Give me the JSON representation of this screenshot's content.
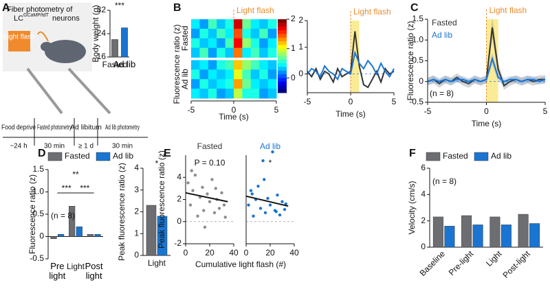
{
  "schematic": {
    "title": "Fiber photometry of",
    "lc": "LC",
    "superscript": "GCaMP/tdT",
    "neurons": "neurons",
    "light": "Light flash",
    "timeline": {
      "steps": [
        "Food deprive",
        "Fasted photometry",
        "Ad libitum",
        "Ad lib photometry"
      ],
      "durations": [
        "~24 h",
        "30 min",
        "≥ 1 d",
        "30 min"
      ]
    },
    "panels": [
      "A",
      "B",
      "C",
      "D",
      "E",
      "F"
    ]
  },
  "chart_data": [
    {
      "type": "bar",
      "categories": [
        "Fasted",
        "Ad lib"
      ],
      "values": [
        22,
        26
      ],
      "colors": [
        "#6d6e71",
        "#1a75d2"
      ],
      "ylim": [
        16,
        32
      ],
      "yticks": [
        16,
        24,
        32
      ],
      "ylabel": "Body weight (g)",
      "annotation": "***"
    },
    {
      "type": "heatmap",
      "groups": [
        {
          "name": "Fasted",
          "rows": [
            [
              0.4,
              0.2,
              0.6,
              0.3,
              0.5,
              1.8,
              0.7,
              0.4,
              0.3,
              0.5
            ],
            [
              0.2,
              0.5,
              0.3,
              0.6,
              0.4,
              1.5,
              0.5,
              0.3,
              0.6,
              0.2
            ],
            [
              0.5,
              0.3,
              0.4,
              0.2,
              0.6,
              1.7,
              0.8,
              0.5,
              0.2,
              0.4
            ],
            [
              0.3,
              0.6,
              0.2,
              0.5,
              0.3,
              1.4,
              0.4,
              0.6,
              0.3,
              0.5
            ]
          ]
        },
        {
          "name": "Ad lib",
          "rows": [
            [
              0.3,
              0.4,
              0.2,
              0.5,
              0.6,
              1.2,
              0.8,
              0.6,
              0.4,
              0.3
            ],
            [
              0.5,
              0.2,
              0.4,
              0.3,
              0.4,
              1.0,
              0.6,
              0.3,
              0.5,
              0.2
            ],
            [
              0.2,
              0.5,
              0.3,
              0.4,
              0.5,
              1.3,
              0.7,
              0.4,
              0.3,
              0.4
            ],
            [
              0.4,
              0.3,
              0.5,
              0.2,
              0.3,
              0.9,
              0.5,
              0.5,
              0.2,
              0.3
            ]
          ]
        }
      ],
      "bins": [
        -5,
        -4,
        -3,
        -2,
        -1,
        0,
        1,
        2,
        3,
        4,
        5
      ],
      "xlim": [
        -5,
        5
      ],
      "xticks": [
        -5,
        0,
        5
      ],
      "xlabel": "Time (s)",
      "ylabel": "Fluorescence ratio (z)",
      "annotation": "Light flash",
      "highlight": [
        0,
        1
      ],
      "colorbar": {
        "lim": [
          -0.5,
          2
        ],
        "ticks": [
          0,
          1,
          2
        ]
      }
    },
    {
      "type": "line",
      "x": [
        -5,
        -4.5,
        -4,
        -3.5,
        -3,
        -2.5,
        -2,
        -1.5,
        -1,
        -0.5,
        0,
        0.5,
        1,
        1.5,
        2,
        2.5,
        3,
        3.5,
        4,
        4.5,
        5
      ],
      "series": [
        {
          "name": "Fasted",
          "color": "#333333",
          "values": [
            0.1,
            -0.1,
            0.2,
            -0.2,
            0.1,
            0,
            -0.3,
            0.2,
            -0.1,
            0,
            0.1,
            1.6,
            0.3,
            -0.4,
            -0.5,
            -0.2,
            0.1,
            -0.3,
            0.2,
            0,
            0.1
          ]
        },
        {
          "name": "Ad lib",
          "color": "#1a75d2",
          "values": [
            0,
            0.2,
            0.1,
            -0.1,
            0.3,
            0.1,
            0,
            -0.2,
            0.2,
            0.1,
            0,
            0.8,
            0.4,
            0.2,
            0.5,
            0.3,
            0,
            0.4,
            0.1,
            -0.1,
            0.2
          ]
        }
      ],
      "xlim": [
        -5,
        5
      ],
      "xticks": [
        -5,
        0,
        5
      ],
      "ylim": [
        -0.7,
        2
      ],
      "yticks": [
        0,
        1,
        2
      ],
      "xlabel": "Time (s)",
      "annotation": "Light flash",
      "highlight": [
        0,
        1
      ]
    },
    {
      "type": "line",
      "x": [
        -5,
        -4.5,
        -4,
        -3.5,
        -3,
        -2.5,
        -2,
        -1.5,
        -1,
        -0.5,
        0,
        0.5,
        1,
        1.5,
        2,
        2.5,
        3,
        3.5,
        4,
        4.5,
        5
      ],
      "series": [
        {
          "name": "Fasted",
          "color": "#333333",
          "values": [
            0,
            0.05,
            -0.05,
            0.05,
            0,
            0.1,
            0,
            -0.05,
            0.05,
            0,
            0.05,
            1.3,
            0.3,
            -0.1,
            0,
            0.05,
            0,
            0.05,
            0,
            0.05,
            0.05
          ],
          "errors": [
            0.1,
            0.1,
            0.1,
            0.1,
            0.1,
            0.1,
            0.1,
            0.1,
            0.1,
            0.1,
            0.1,
            0.25,
            0.15,
            0.1,
            0.1,
            0.1,
            0.1,
            0.1,
            0.1,
            0.1,
            0.1
          ]
        },
        {
          "name": "Ad lib",
          "color": "#1a75d2",
          "values": [
            0,
            0.05,
            0,
            0.05,
            0,
            0.05,
            0.05,
            0,
            0.05,
            0,
            0.05,
            0.55,
            0.1,
            0,
            0.05,
            0.05,
            0,
            0.05,
            0.05,
            0,
            0.05
          ],
          "errors": [
            0.08,
            0.08,
            0.08,
            0.08,
            0.08,
            0.08,
            0.08,
            0.08,
            0.08,
            0.08,
            0.08,
            0.15,
            0.1,
            0.08,
            0.08,
            0.08,
            0.08,
            0.08,
            0.08,
            0.08,
            0.08
          ]
        }
      ],
      "xlim": [
        -5,
        5
      ],
      "xticks": [
        -5,
        0,
        5
      ],
      "ylim": [
        -0.5,
        1.5
      ],
      "yticks": [
        -0.5,
        0,
        0.5,
        {
          "value": 1,
          "label": "1.0"
        },
        1.5
      ],
      "xlabel": "Time (s)",
      "ylabel": "Fluorescence ratio (z)",
      "annotation": "Light flash",
      "highlight": [
        0,
        1
      ],
      "note": "(n = 8)"
    },
    {
      "type": "bar",
      "categories": [
        "Pre light",
        "Light",
        "Post light"
      ],
      "series": [
        {
          "name": "Fasted",
          "color": "#6d6e71",
          "values": [
            -0.05,
            0.68,
            0.05
          ]
        },
        {
          "name": "Ad lib",
          "color": "#1a75d2",
          "values": [
            0.05,
            0.22,
            0.05
          ]
        }
      ],
      "ylim": [
        -0.5,
        1.5
      ],
      "yticks": [
        -0.5,
        0,
        0.5,
        {
          "value": 1,
          "label": "1.0"
        },
        1.5
      ],
      "ylabel": "Fluorescence ratio (z)",
      "note": "(n = 8)",
      "annotations": [
        "***",
        "**",
        "***"
      ],
      "legend": true
    },
    {
      "type": "bar",
      "categories": [
        "Light"
      ],
      "series": [
        {
          "color": "#6d6e71",
          "values": [
            2.3
          ]
        },
        {
          "color": "#1a75d2",
          "values": [
            1.8
          ]
        }
      ],
      "ylim": [
        0,
        4
      ],
      "yticks": [
        0,
        1,
        2,
        3,
        4
      ],
      "ylabel": "Peak fluorescence ratio (z)",
      "annotation": "*"
    },
    {
      "type": "scatter",
      "series": [
        {
          "name": "Fasted",
          "color": "#8c8c8c",
          "x": [
            2,
            4,
            6,
            8,
            10,
            12,
            14,
            16,
            18,
            20,
            22,
            24,
            26,
            28,
            30,
            32,
            5,
            15,
            25,
            33
          ],
          "y": [
            3.5,
            1.5,
            2.8,
            4.2,
            0.5,
            2.2,
            3.1,
            -0.5,
            2.5,
            1.8,
            3.8,
            0.8,
            2.0,
            1.2,
            2.6,
            1.5,
            4.6,
            1.0,
            3.0,
            0.4
          ],
          "fit": {
            "x": [
              0,
              35
            ],
            "y": [
              2.6,
              1.8
            ]
          },
          "annotation": "P = 0.10"
        },
        {
          "name": "Ad lib",
          "color": "#1a75d2",
          "x": [
            2,
            4,
            6,
            8,
            10,
            12,
            14,
            16,
            18,
            20,
            22,
            24,
            26,
            28,
            30,
            32,
            5,
            15,
            25,
            33
          ],
          "y": [
            1.5,
            2.8,
            0.5,
            2.0,
            3.2,
            1.2,
            5.5,
            0.8,
            2.1,
            1.5,
            6.3,
            1.0,
            2.4,
            0.6,
            1.8,
            1.1,
            2.5,
            3.8,
            0.9,
            1.6
          ],
          "fit": {
            "x": [
              0,
              35
            ],
            "y": [
              2.3,
              1.4
            ]
          },
          "annotation": "*"
        }
      ],
      "xlim": [
        0,
        40
      ],
      "xticks": [
        0,
        20,
        40
      ],
      "ylim": [
        -2,
        6
      ],
      "yticks": [
        -2,
        0,
        2,
        4
      ],
      "xlabel": "Cumulative light flash (#)",
      "ylabel": "Peak fluorescence ratio (z)"
    },
    {
      "type": "bar",
      "categories": [
        "Baseline",
        "Pre-light",
        "Light",
        "Post-light"
      ],
      "series": [
        {
          "name": "Fasted",
          "color": "#6d6e71",
          "values": [
            2.3,
            2.4,
            2.3,
            2.5
          ]
        },
        {
          "name": "Ad lib",
          "color": "#1a75d2",
          "values": [
            1.6,
            1.7,
            1.7,
            1.8
          ]
        }
      ],
      "ylim": [
        0,
        6
      ],
      "yticks": [
        0,
        2,
        4,
        6
      ],
      "ylabel": "Velocity (cm/s)",
      "note": "(n = 8)",
      "legend": true,
      "rotate_categories": true
    }
  ]
}
